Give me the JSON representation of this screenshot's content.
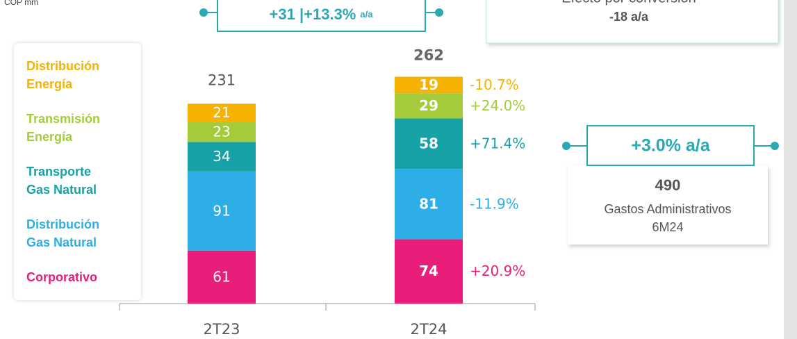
{
  "chart_data": {
    "type": "stacked_bar",
    "unit": "COP mm",
    "categories": [
      "2T23",
      "2T24"
    ],
    "series": [
      {
        "name": "Corporativo",
        "color": "#e91e7a",
        "values": [
          61,
          74
        ],
        "change_label": "+20.9%"
      },
      {
        "name": "Distribución Gas Natural",
        "color": "#2eaee6",
        "values": [
          91,
          81
        ],
        "change_label": "-11.9%"
      },
      {
        "name": "Transporte Gas Natural",
        "color": "#17a2a8",
        "values": [
          34,
          58
        ],
        "change_label": "+71.4%"
      },
      {
        "name": "Transmisión Energía",
        "color": "#a4cc3a",
        "values": [
          23,
          29
        ],
        "change_label": "+24.0%"
      },
      {
        "name": "Distribución Energía",
        "color": "#f5b200",
        "values": [
          21,
          19
        ],
        "change_label": "-10.7%"
      }
    ],
    "totals": [
      231,
      262
    ],
    "growth_box": {
      "main": "+31 |+13.3%",
      "suffix": "a/a"
    },
    "fx_box": {
      "title": "Efecto por conversión",
      "value": "-18 a/a"
    },
    "summary_box": {
      "growth": "+3.0% a/a",
      "value": "490",
      "label": "Gastos Administrativos",
      "period": "6M24"
    }
  }
}
